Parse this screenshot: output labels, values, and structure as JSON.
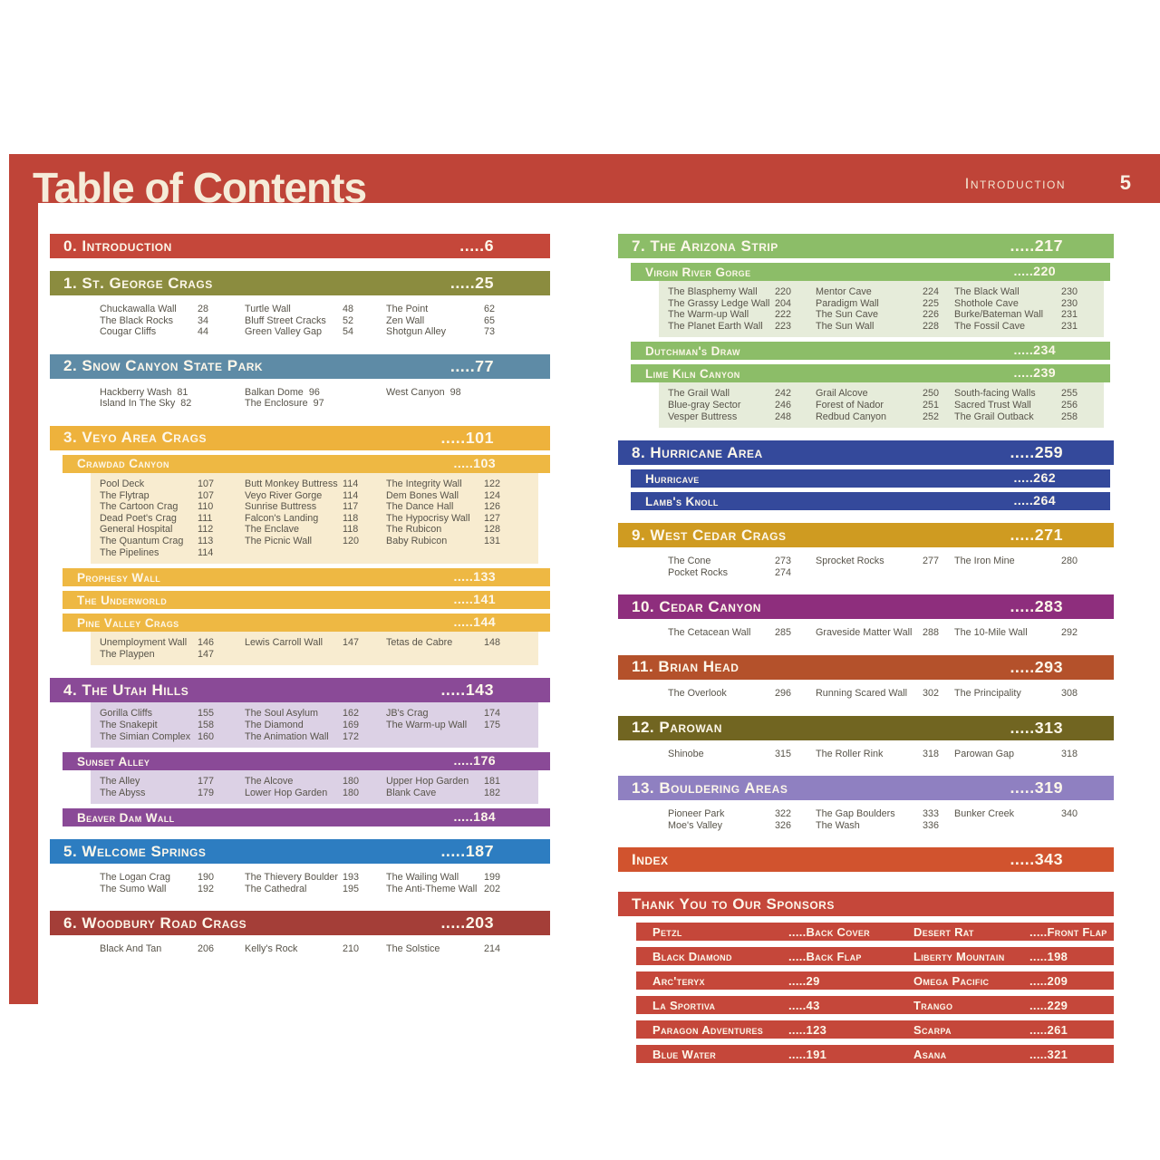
{
  "page": {
    "title": "Table of Contents",
    "header_right": "Introduction",
    "page_number": "5",
    "accent_red": "#bf4438"
  },
  "left_sections": [
    {
      "level": "main",
      "title": "0. Introduction",
      "page": ".....6",
      "color": "#c5473a"
    },
    {
      "level": "main",
      "title": "1. St. George Crags",
      "page": ".....25",
      "color": "#8b8c3f",
      "list": {
        "bg": null,
        "inline": false,
        "columns": [
          [
            [
              "Chuckawalla Wall",
              "28"
            ],
            [
              "The Black Rocks",
              "34"
            ],
            [
              "Cougar Cliffs",
              "44"
            ]
          ],
          [
            [
              "Turtle Wall",
              "48"
            ],
            [
              "Bluff Street Cracks",
              "52"
            ],
            [
              "Green Valley Gap",
              "54"
            ]
          ],
          [
            [
              "The Point",
              "62"
            ],
            [
              "Zen Wall",
              "65"
            ],
            [
              "Shotgun Alley",
              "73"
            ]
          ]
        ]
      }
    },
    {
      "level": "main",
      "title": "2. Snow Canyon State Park",
      "page": ".....77",
      "color": "#5e8ba6",
      "list": {
        "bg": null,
        "inline": true,
        "columns": [
          [
            [
              "Hackberry Wash",
              "81"
            ],
            [
              "Island In The Sky",
              "82"
            ]
          ],
          [
            [
              "Balkan Dome",
              "96"
            ],
            [
              "The Enclosure",
              "97"
            ]
          ],
          [
            [
              "West Canyon",
              "98"
            ]
          ]
        ]
      }
    },
    {
      "level": "main",
      "title": "3. Veyo Area Crags",
      "page": ".....101",
      "color": "#eeb23c"
    },
    {
      "level": "sub",
      "title": "Crawdad Canyon",
      "page": ".....103",
      "color": "#eeb843",
      "list": {
        "bg": "#f8ecd0",
        "inline": false,
        "columns": [
          [
            [
              "Pool Deck",
              "107"
            ],
            [
              "The Flytrap",
              "107"
            ],
            [
              "The Cartoon Crag",
              "110"
            ],
            [
              "Dead Poet's Crag",
              "111"
            ],
            [
              "General Hospital",
              "112"
            ],
            [
              "The Quantum Crag",
              "113"
            ],
            [
              "The Pipelines",
              "114"
            ]
          ],
          [
            [
              "Butt Monkey Buttress",
              "114"
            ],
            [
              "Veyo River Gorge",
              "114"
            ],
            [
              "Sunrise Buttress",
              "117"
            ],
            [
              "Falcon's Landing",
              "118"
            ],
            [
              "The Enclave",
              "118"
            ],
            [
              "The Picnic Wall",
              "120"
            ]
          ],
          [
            [
              "The Integrity Wall",
              "122"
            ],
            [
              "Dem Bones Wall",
              "124"
            ],
            [
              "The Dance Hall",
              "126"
            ],
            [
              "The Hypocrisy Wall",
              "127"
            ],
            [
              "The Rubicon",
              "128"
            ],
            [
              "Baby Rubicon",
              "131"
            ]
          ]
        ]
      }
    },
    {
      "level": "sub",
      "title": "Prophesy Wall",
      "page": ".....133",
      "color": "#eeb843"
    },
    {
      "level": "sub",
      "title": "The Underworld",
      "page": ".....141",
      "color": "#eeb843"
    },
    {
      "level": "sub",
      "title": "Pine Valley Crags",
      "page": ".....144",
      "color": "#eeb843",
      "list": {
        "bg": "#f8ecd0",
        "inline": false,
        "columns": [
          [
            [
              "Unemployment Wall",
              "146"
            ],
            [
              "The Playpen",
              "147"
            ]
          ],
          [
            [
              "Lewis Carroll Wall",
              "147"
            ]
          ],
          [
            [
              "Tetas de Cabre",
              "148"
            ]
          ]
        ]
      }
    },
    {
      "level": "main",
      "title": "4. The Utah Hills",
      "page": ".....143",
      "color": "#8a4a97",
      "list": {
        "bg": "#dcd1e5",
        "inline": false,
        "columns": [
          [
            [
              "Gorilla Cliffs",
              "155"
            ],
            [
              "The Snakepit",
              "158"
            ],
            [
              "The Simian Complex",
              "160"
            ]
          ],
          [
            [
              "The Soul Asylum",
              "162"
            ],
            [
              "The Diamond",
              "169"
            ],
            [
              "The Animation Wall",
              "172"
            ]
          ],
          [
            [
              "JB's Crag",
              "174"
            ],
            [
              "The Warm-up Wall",
              "175"
            ]
          ]
        ]
      }
    },
    {
      "level": "sub",
      "title": "Sunset Alley",
      "page": ".....176",
      "color": "#8a4a97",
      "list": {
        "bg": "#dcd1e5",
        "inline": false,
        "columns": [
          [
            [
              "The Alley",
              "177"
            ],
            [
              "The Abyss",
              "179"
            ]
          ],
          [
            [
              "The Alcove",
              "180"
            ],
            [
              "Lower Hop Garden",
              "180"
            ]
          ],
          [
            [
              "Upper Hop Garden",
              "181"
            ],
            [
              "Blank Cave",
              "182"
            ]
          ]
        ]
      }
    },
    {
      "level": "sub",
      "title": "Beaver Dam Wall",
      "page": ".....184",
      "color": "#8a4a97"
    },
    {
      "level": "main",
      "title": "5. Welcome Springs",
      "page": ".....187",
      "color": "#2d7dc1",
      "list": {
        "bg": null,
        "inline": false,
        "columns": [
          [
            [
              "The Logan Crag",
              "190"
            ],
            [
              "The Sumo Wall",
              "192"
            ]
          ],
          [
            [
              "The Thievery Boulder",
              "193"
            ],
            [
              "The Cathedral",
              "195"
            ]
          ],
          [
            [
              "The Wailing Wall",
              "199"
            ],
            [
              "The Anti-Theme Wall",
              "202"
            ]
          ]
        ]
      }
    },
    {
      "level": "main",
      "title": "6. Woodbury Road Crags",
      "page": ".....203",
      "color": "#a43e38",
      "list": {
        "bg": null,
        "inline": false,
        "columns": [
          [
            [
              "Black And Tan",
              "206"
            ]
          ],
          [
            [
              "Kelly's Rock",
              "210"
            ]
          ],
          [
            [
              "The Solstice",
              "214"
            ]
          ]
        ]
      }
    }
  ],
  "right_sections": [
    {
      "level": "main",
      "title": "7. The Arizona Strip",
      "page": ".....217",
      "color": "#8cbd68"
    },
    {
      "level": "sub",
      "title": "Virgin River Gorge",
      "page": ".....220",
      "color": "#8cbd68",
      "list": {
        "bg": "#e6ecda",
        "inline": false,
        "columns": [
          [
            [
              "The Blasphemy Wall",
              "220"
            ],
            [
              "The Grassy Ledge Wall",
              "204"
            ],
            [
              "The Warm-up Wall",
              "222"
            ],
            [
              "The Planet Earth Wall",
              "223"
            ]
          ],
          [
            [
              "Mentor Cave",
              "224"
            ],
            [
              "Paradigm Wall",
              "225"
            ],
            [
              "The Sun Cave",
              "226"
            ],
            [
              "The Sun Wall",
              "228"
            ]
          ],
          [
            [
              "The Black Wall",
              "230"
            ],
            [
              "Shothole Cave",
              "230"
            ],
            [
              "Burke/Bateman Wall",
              "231"
            ],
            [
              "The Fossil Cave",
              "231"
            ]
          ]
        ]
      }
    },
    {
      "level": "sub",
      "title": "Dutchman's Draw",
      "page": ".....234",
      "color": "#8cbd68"
    },
    {
      "level": "sub",
      "title": "Lime Kiln Canyon",
      "page": ".....239",
      "color": "#8cbd68",
      "list": {
        "bg": "#e6ecda",
        "inline": false,
        "columns": [
          [
            [
              "The Grail Wall",
              "242"
            ],
            [
              "Blue-gray Sector",
              "246"
            ],
            [
              "Vesper Buttress",
              "248"
            ]
          ],
          [
            [
              "Grail Alcove",
              "250"
            ],
            [
              "Forest of Nador",
              "251"
            ],
            [
              "Redbud Canyon",
              "252"
            ]
          ],
          [
            [
              "South-facing Walls",
              "255"
            ],
            [
              "Sacred Trust Wall",
              "256"
            ],
            [
              "The Grail Outback",
              "258"
            ]
          ]
        ]
      }
    },
    {
      "level": "main",
      "title": "8. Hurricane Area",
      "page": ".....259",
      "color": "#34499b"
    },
    {
      "level": "sub",
      "title": "Hurricave",
      "page": ".....262",
      "color": "#34499b"
    },
    {
      "level": "sub",
      "title": "Lamb's Knoll",
      "page": ".....264",
      "color": "#34499b"
    },
    {
      "level": "main",
      "title": "9. West Cedar Crags",
      "page": ".....271",
      "color": "#cf9b21",
      "list": {
        "bg": null,
        "inline": false,
        "columns": [
          [
            [
              "The Cone",
              "273"
            ],
            [
              "Pocket Rocks",
              "274"
            ]
          ],
          [
            [
              "Sprocket Rocks",
              "277"
            ]
          ],
          [
            [
              "The Iron Mine",
              "280"
            ]
          ]
        ]
      }
    },
    {
      "level": "main",
      "title": "10. Cedar Canyon",
      "page": ".....283",
      "color": "#8e2e7d",
      "list": {
        "bg": null,
        "inline": false,
        "columns": [
          [
            [
              "The Cetacean Wall",
              "285"
            ]
          ],
          [
            [
              "Graveside Matter Wall",
              "288"
            ]
          ],
          [
            [
              "The 10-Mile Wall",
              "292"
            ]
          ]
        ]
      }
    },
    {
      "level": "main",
      "title": "11. Brian Head",
      "page": ".....293",
      "color": "#b4512b",
      "list": {
        "bg": null,
        "inline": false,
        "columns": [
          [
            [
              "The Overlook",
              "296"
            ]
          ],
          [
            [
              "Running Scared Wall",
              "302"
            ]
          ],
          [
            [
              "The Principality",
              "308"
            ]
          ]
        ]
      }
    },
    {
      "level": "main",
      "title": "12. Parowan",
      "page": ".....313",
      "color": "#716521",
      "list": {
        "bg": null,
        "inline": false,
        "columns": [
          [
            [
              "Shinobe",
              "315"
            ]
          ],
          [
            [
              "The Roller Rink",
              "318"
            ]
          ],
          [
            [
              "Parowan Gap",
              "318"
            ]
          ]
        ]
      }
    },
    {
      "level": "main",
      "title": "13. Bouldering Areas",
      "page": ".....319",
      "color": "#8f80c1",
      "list": {
        "bg": null,
        "inline": false,
        "columns": [
          [
            [
              "Pioneer Park",
              "322"
            ],
            [
              "Moe's Valley",
              "326"
            ]
          ],
          [
            [
              "The Gap Boulders",
              "333"
            ],
            [
              "The Wash",
              "336"
            ]
          ],
          [
            [
              "Bunker Creek",
              "340"
            ]
          ]
        ]
      }
    },
    {
      "level": "main",
      "title": "Index",
      "page": ".....343",
      "color": "#d1532e"
    }
  ],
  "sponsors": {
    "title": "Thank You to Our Sponsors",
    "color": "#c5473a",
    "rows": [
      [
        "Petzl",
        ".....Back Cover",
        "Desert Rat",
        ".....Front Flap"
      ],
      [
        "Black Diamond",
        ".....Back Flap",
        "Liberty Mountain",
        ".....198"
      ],
      [
        "Arc'teryx",
        ".....29",
        "Omega Pacific",
        ".....209"
      ],
      [
        "La Sportiva",
        ".....43",
        "Trango",
        ".....229"
      ],
      [
        "Paragon Adventures",
        ".....123",
        "Scarpa",
        ".....261"
      ],
      [
        "Blue Water",
        ".....191",
        "Asana",
        ".....321"
      ]
    ]
  }
}
